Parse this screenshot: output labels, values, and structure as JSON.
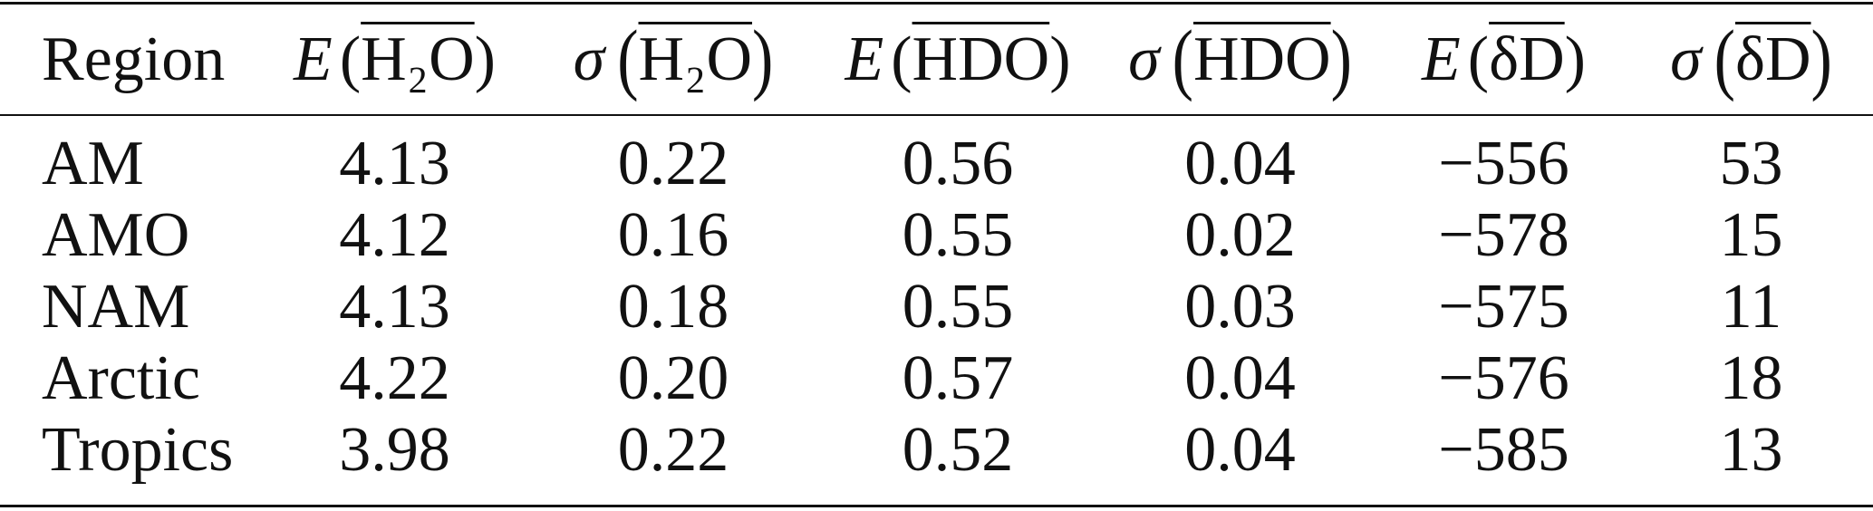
{
  "table": {
    "header": [
      {
        "text": "Region"
      },
      {
        "operator": "E",
        "open": "(",
        "argument": "H₂O",
        "close": ")"
      },
      {
        "operator": "σ",
        "open": "(",
        "argument": "H₂O",
        "close": ")"
      },
      {
        "operator": "E",
        "open": "(",
        "argument": "HDO",
        "close": ")"
      },
      {
        "operator": "σ",
        "open": "(",
        "argument": "HDO",
        "close": ")"
      },
      {
        "operator": "E",
        "open": "(",
        "argument": "δD",
        "close": ")"
      },
      {
        "operator": "σ",
        "open": "(",
        "argument": "δD",
        "close": ")"
      }
    ],
    "rows": [
      [
        "AM",
        "4.13",
        "0.22",
        "0.56",
        "0.04",
        "−556",
        "53"
      ],
      [
        "AMO",
        "4.12",
        "0.16",
        "0.55",
        "0.02",
        "−578",
        "15"
      ],
      [
        "NAM",
        "4.13",
        "0.18",
        "0.55",
        "0.03",
        "−575",
        "11"
      ],
      [
        "Arctic",
        "4.22",
        "0.20",
        "0.57",
        "0.04",
        "−576",
        "18"
      ],
      [
        "Tropics",
        "3.98",
        "0.22",
        "0.52",
        "0.04",
        "−585",
        "13"
      ]
    ]
  }
}
